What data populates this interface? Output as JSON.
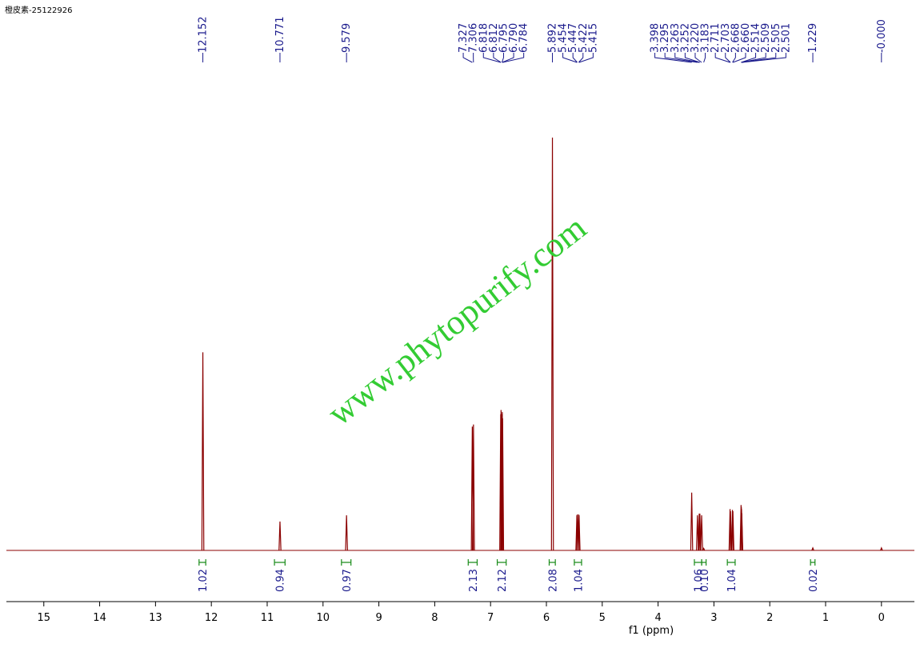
{
  "chart_data": {
    "type": "spectrum",
    "title": "橙皮素-25122926",
    "watermark": "www.phytopurify.com",
    "xlabel": "f1 (ppm)",
    "xlim": [
      15.67,
      -0.59
    ],
    "xticks": [
      15,
      14,
      13,
      12,
      11,
      10,
      9,
      8,
      7,
      6,
      5,
      4,
      3,
      2,
      1,
      0
    ],
    "ylim": [
      0,
      100
    ],
    "color": "#8b0000",
    "label_color": "#1a1a8c",
    "integral_color": "#1a8c1a",
    "watermark_color": "#33cc33",
    "peaks": [
      {
        "value": 12.152,
        "label": "12.152"
      },
      {
        "value": 10.771,
        "label": "10.771"
      },
      {
        "value": 9.579,
        "label": "9.579"
      },
      {
        "value": 7.327,
        "label": "7.327"
      },
      {
        "value": 7.306,
        "label": "7.306"
      },
      {
        "value": 6.818,
        "label": "6.818"
      },
      {
        "value": 6.812,
        "label": "6.812"
      },
      {
        "value": 6.795,
        "label": "6.795"
      },
      {
        "value": 6.79,
        "label": "6.790"
      },
      {
        "value": 6.784,
        "label": "6.784"
      },
      {
        "value": 5.892,
        "label": "5.892"
      },
      {
        "value": 5.454,
        "label": "5.454"
      },
      {
        "value": 5.447,
        "label": "5.447"
      },
      {
        "value": 5.422,
        "label": "5.422"
      },
      {
        "value": 5.415,
        "label": "5.415"
      },
      {
        "value": 3.398,
        "label": "3.398"
      },
      {
        "value": 3.295,
        "label": "3.295"
      },
      {
        "value": 3.263,
        "label": "3.263"
      },
      {
        "value": 3.252,
        "label": "3.252"
      },
      {
        "value": 3.22,
        "label": "3.220"
      },
      {
        "value": 3.183,
        "label": "3.183"
      },
      {
        "value": 2.711,
        "label": "2.711"
      },
      {
        "value": 2.703,
        "label": "2.703"
      },
      {
        "value": 2.668,
        "label": "2.668"
      },
      {
        "value": 2.66,
        "label": "2.660"
      },
      {
        "value": 2.514,
        "label": "2.514"
      },
      {
        "value": 2.509,
        "label": "2.509"
      },
      {
        "value": 2.505,
        "label": "2.505"
      },
      {
        "value": 2.501,
        "label": "2.501"
      },
      {
        "value": 1.229,
        "label": "1.229"
      },
      {
        "value": 0,
        "label": "-0.000"
      }
    ],
    "heights": [
      48,
      7,
      8.5,
      30,
      30.5,
      33,
      34,
      33,
      33.5,
      32,
      100,
      8.5,
      8.7,
      8.7,
      8.5,
      14,
      8.5,
      8.9,
      8.9,
      8.5,
      0.5,
      10,
      9.5,
      9.8,
      9.5,
      11,
      10.5,
      10,
      9,
      0.6,
      0.6
    ],
    "integrals": {
      "ranges": [
        [
          12.22,
          12.1
        ],
        [
          10.87,
          10.68
        ],
        [
          9.67,
          9.5
        ],
        [
          7.4,
          7.24
        ],
        [
          6.88,
          6.72
        ],
        [
          5.95,
          5.84
        ],
        [
          5.5,
          5.37
        ],
        [
          3.35,
          3.22
        ],
        [
          3.22,
          3.14
        ],
        [
          2.76,
          2.62
        ],
        [
          1.27,
          1.19
        ]
      ],
      "values": [
        1.02,
        0.94,
        0.97,
        2.13,
        2.12,
        2.08,
        1.04,
        1.06,
        0.1,
        1.04,
        0.02
      ],
      "value_labels": [
        "1.02",
        "0.94",
        "0.97",
        "2.13",
        "2.12",
        "2.08",
        "1.04",
        "1.06",
        "0.10",
        "1.04",
        "0.02"
      ]
    }
  }
}
